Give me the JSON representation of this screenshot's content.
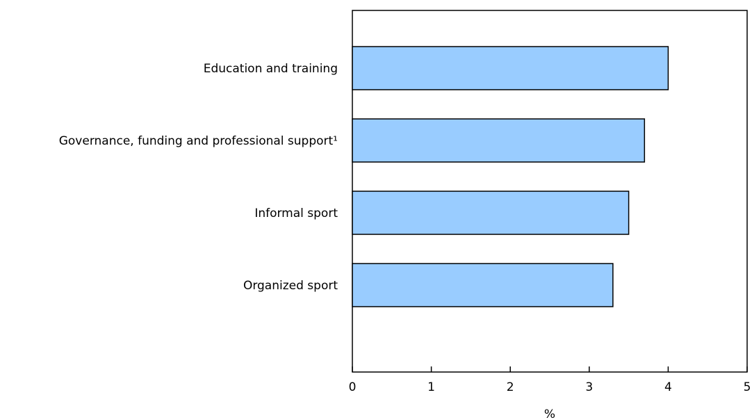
{
  "chart_data": {
    "type": "bar",
    "orientation": "horizontal",
    "categories": [
      "Education and training",
      "Governance, funding and professional support¹",
      "Informal sport",
      "Organized sport"
    ],
    "values": [
      4.0,
      3.7,
      3.5,
      3.3
    ],
    "xlabel": "%",
    "xlim": [
      0,
      5
    ],
    "xticks": [
      "0",
      "1",
      "2",
      "3",
      "4",
      "5"
    ],
    "grid": false,
    "legend": "none",
    "bar_color": "#99ccff",
    "bar_edge_color": "#000000"
  }
}
